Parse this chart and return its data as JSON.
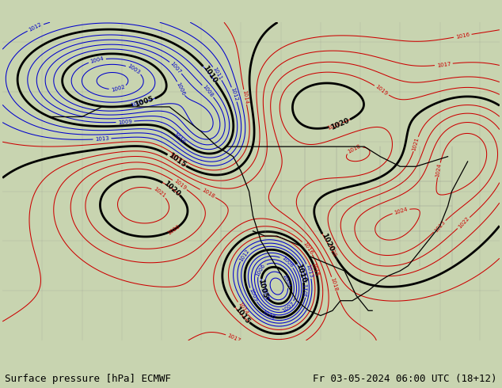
{
  "footer_text_left": "Surface pressure [hPa] ECMWF",
  "footer_text_right": "Fr 03-05-2024 06:00 UTC (18+12)",
  "figsize": [
    6.34,
    4.9
  ],
  "dpi": 100,
  "bg_color": "#c8d4b0",
  "land_green": "#b8d4a0",
  "contour_blue": "#0000cc",
  "contour_red": "#cc0000",
  "contour_black": "#000000",
  "footer_fontsize": 9,
  "lon_min": -180,
  "lon_max": -55,
  "lat_min": 10,
  "lat_max": 74,
  "base_pressure": 1016.0
}
